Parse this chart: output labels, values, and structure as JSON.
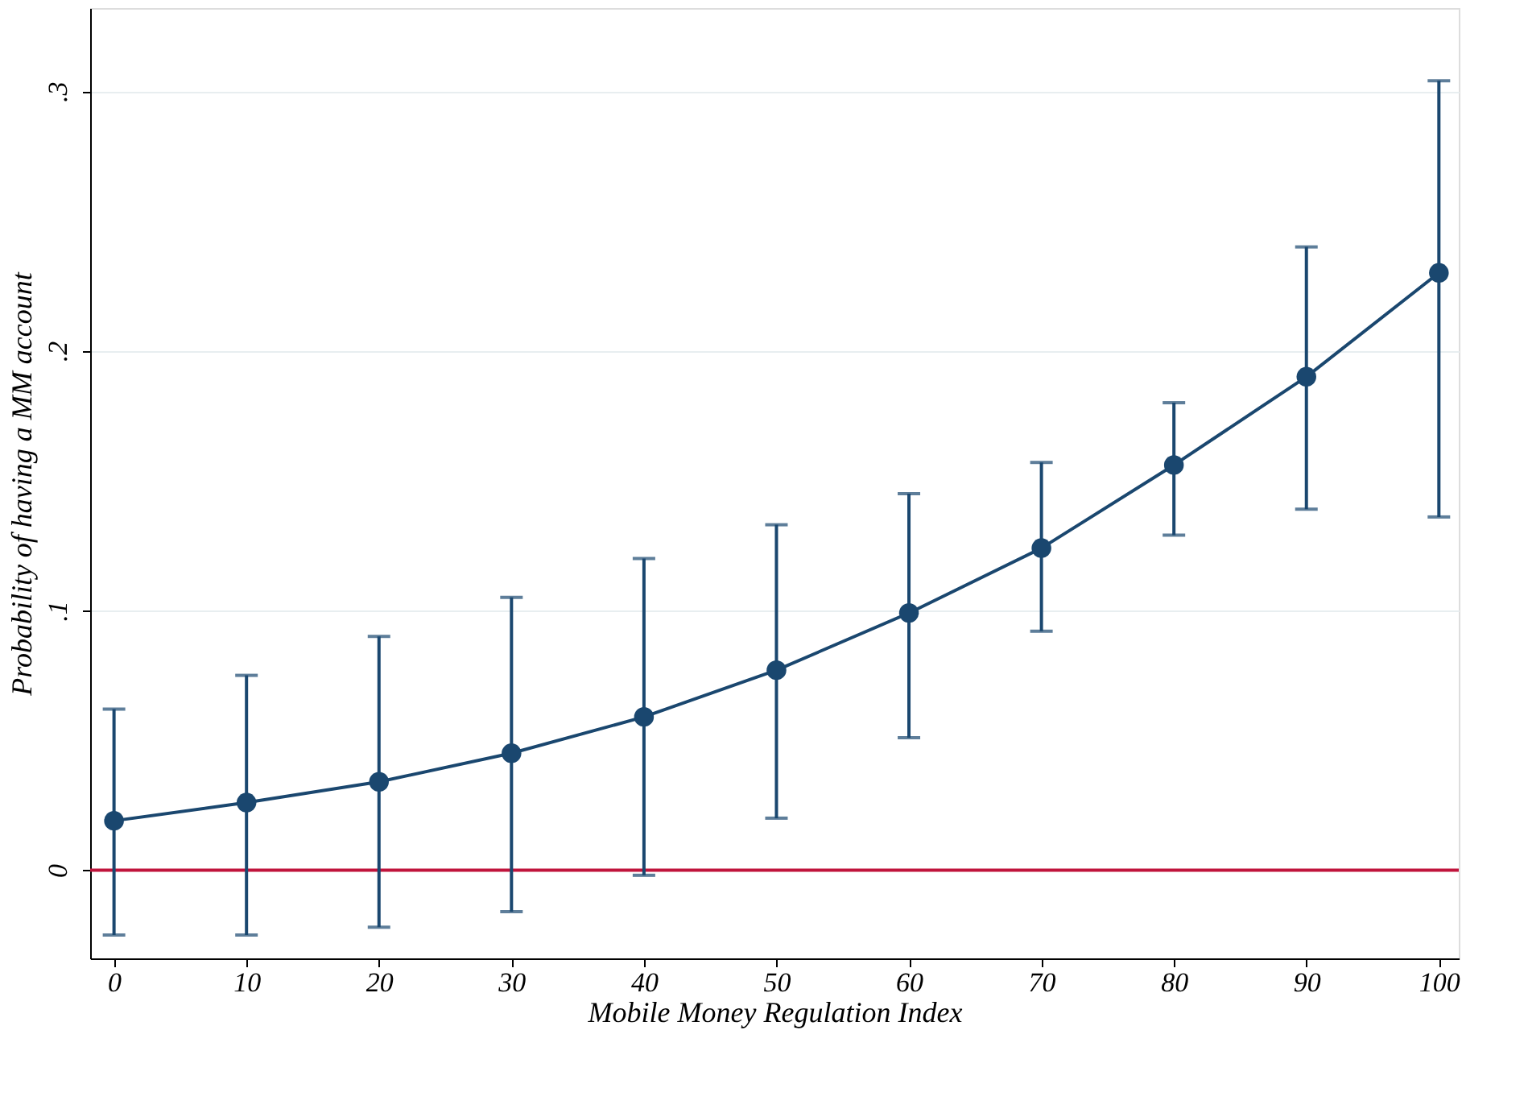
{
  "chart_data": {
    "type": "line",
    "xlabel": "Mobile Money Regulation Index",
    "ylabel": "Probability of having a MM account",
    "x": [
      0,
      10,
      20,
      30,
      40,
      50,
      60,
      70,
      80,
      90,
      100
    ],
    "series": [
      {
        "color": "#1a476f",
        "values": [
          0.019,
          0.026,
          0.034,
          0.045,
          0.059,
          0.077,
          0.099,
          0.124,
          0.156,
          0.19,
          0.23
        ],
        "errors": [
          [
            -0.025,
            0.062
          ],
          [
            -0.025,
            0.075
          ],
          [
            -0.022,
            0.09
          ],
          [
            -0.016,
            0.105
          ],
          [
            -0.002,
            0.12
          ],
          [
            0.02,
            0.133
          ],
          [
            0.051,
            0.145
          ],
          [
            0.092,
            0.157
          ],
          [
            0.129,
            0.18
          ],
          [
            0.139,
            0.24
          ],
          [
            0.136,
            0.304
          ]
        ]
      }
    ],
    "marker": "circle",
    "line_style": "solid",
    "grid": "y",
    "legend": false,
    "xlim": [
      -1.8,
      101.5
    ],
    "xticks": [
      0,
      10,
      20,
      30,
      40,
      50,
      60,
      70,
      80,
      90,
      100
    ],
    "ylim": [
      -0.034,
      0.332
    ],
    "yticks": [
      0,
      {
        "value": 0.1,
        "label": ".1"
      },
      {
        "value": 0.2,
        "label": ".2"
      },
      {
        "value": 0.3,
        "label": ".3"
      }
    ],
    "ref_lines": [
      {
        "axis": "y",
        "value": 0,
        "color": "#c0143c"
      }
    ]
  }
}
